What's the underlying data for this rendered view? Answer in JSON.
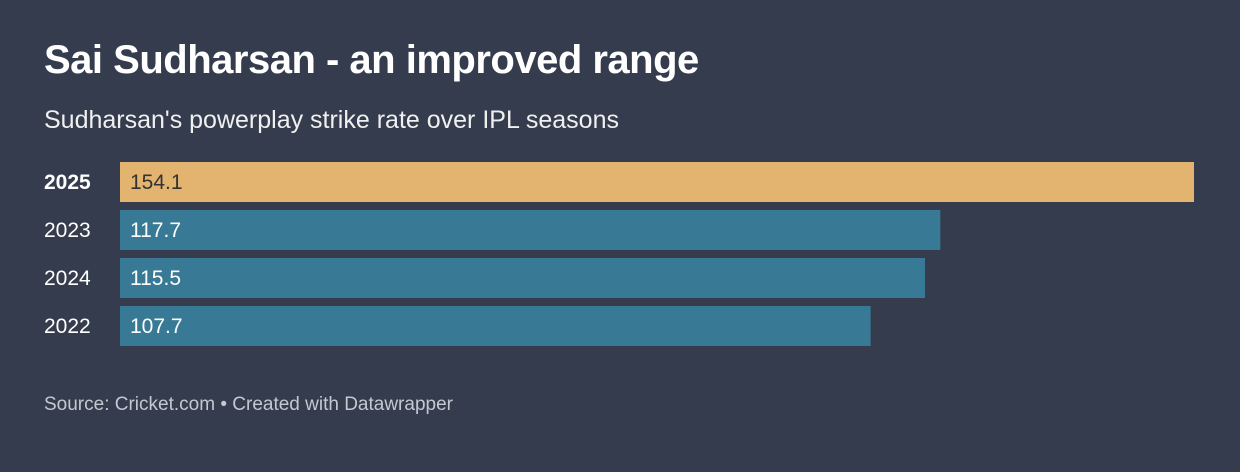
{
  "chart_data": {
    "type": "bar",
    "orientation": "horizontal",
    "title": "Sai Sudharsan - an improved range",
    "subtitle": "Sudharsan's powerplay strike rate over IPL seasons",
    "categories": [
      "2025",
      "2023",
      "2024",
      "2022"
    ],
    "values": [
      154.1,
      117.7,
      115.5,
      107.7
    ],
    "highlight": "2025",
    "xlim": [
      0,
      154.1
    ],
    "grid": false,
    "colors": {
      "highlight": "#e3b46f",
      "default": "#387a96",
      "background": "#343c4d"
    }
  },
  "footer": {
    "source": "Source: Cricket.com",
    "separator": "•",
    "credit": "Created with Datawrapper"
  }
}
